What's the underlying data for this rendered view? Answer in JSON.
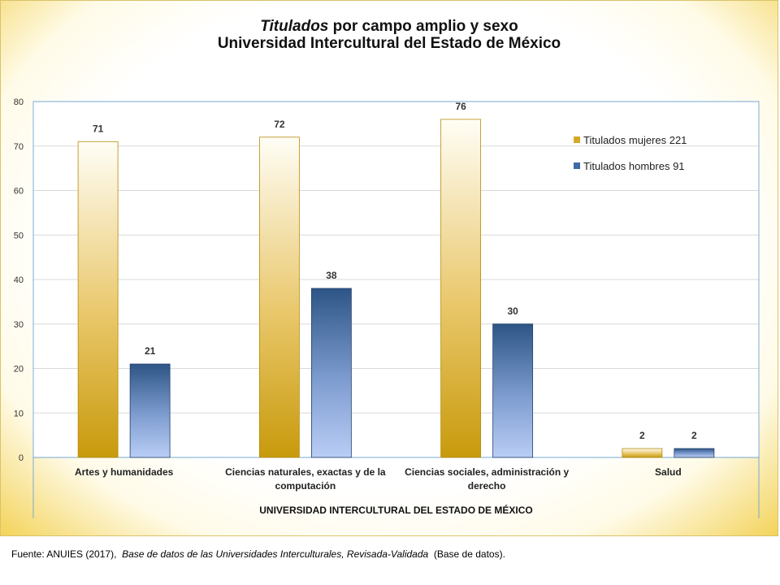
{
  "title": {
    "italic_part": "Titulados",
    "rest_line1": " por campo amplio y sexo",
    "line2": "Universidad Intercultural del Estado de México"
  },
  "source": {
    "prefix": "Fuente: ANUIES (2017),",
    "italic": "Base de datos de las Universidades Interculturales, Revisada-Validada",
    "suffix": "(Base de datos)."
  },
  "colors": {
    "mujeres": "#d4a82a",
    "hombres": "#3e6aa6"
  },
  "chart_data": {
    "type": "bar",
    "xlabel": "UNIVERSIDAD INTERCULTURAL DEL ESTADO DE MÉXICO",
    "ylabel": "",
    "ylim": [
      0,
      80
    ],
    "yticks": [
      0,
      10,
      20,
      30,
      40,
      50,
      60,
      70,
      80
    ],
    "grid": true,
    "legend_position": "top-right",
    "categories": [
      [
        "Artes y humanidades"
      ],
      [
        "Ciencias naturales, exactas y de la",
        "computación"
      ],
      [
        "Ciencias sociales, administración y",
        "derecho"
      ],
      [
        "Salud"
      ]
    ],
    "series": [
      {
        "name": "Titulados mujeres 221",
        "values": [
          71,
          72,
          76,
          2
        ]
      },
      {
        "name": "Titulados hombres 91",
        "values": [
          21,
          38,
          30,
          2
        ]
      }
    ]
  }
}
